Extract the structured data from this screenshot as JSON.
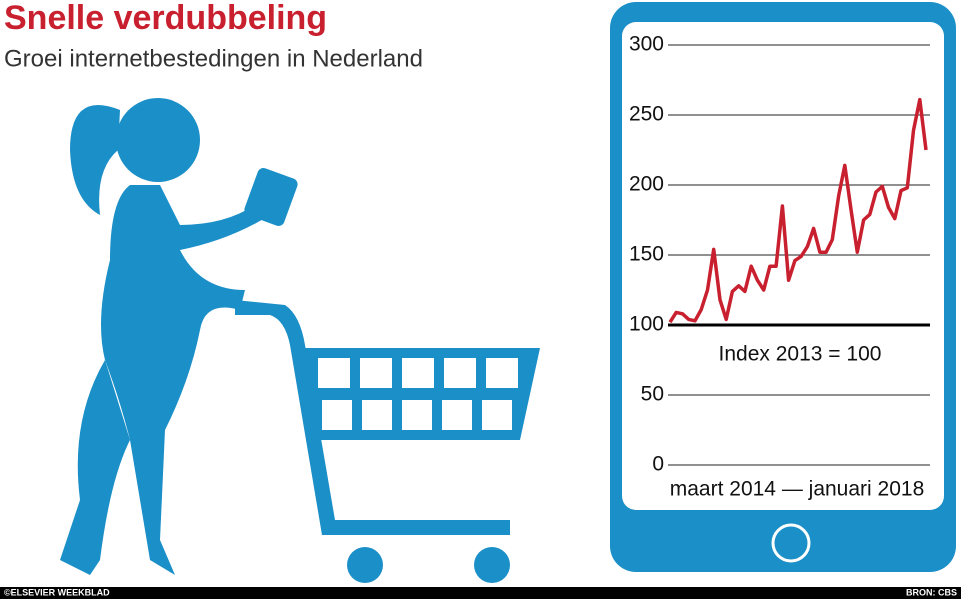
{
  "chart_data": {
    "type": "line",
    "title": "Snelle verdubbeling",
    "subtitle": "Groei internetbestedingen in Nederland",
    "annotation": "Index 2013 = 100",
    "x_label": "maart 2014 — januari 2018",
    "credit": "©ELSEVIER WEEKBLAD",
    "source": "BRON: CBS",
    "series": [
      {
        "name": "Internetbestedingen",
        "color": "#c8202f",
        "values": [
          102,
          109,
          108,
          104,
          103,
          111,
          125,
          154,
          118,
          104,
          124,
          128,
          124,
          142,
          132,
          125,
          142,
          142,
          185,
          132,
          146,
          149,
          156,
          169,
          152,
          152,
          161,
          192,
          214,
          182,
          152,
          175,
          179,
          195,
          199,
          184,
          176,
          196,
          198,
          239,
          261,
          225
        ]
      }
    ],
    "ylim": [
      0,
      300
    ],
    "yticks": [
      0,
      50,
      100,
      150,
      200,
      250,
      300
    ],
    "baseline": 100,
    "grid": true
  }
}
